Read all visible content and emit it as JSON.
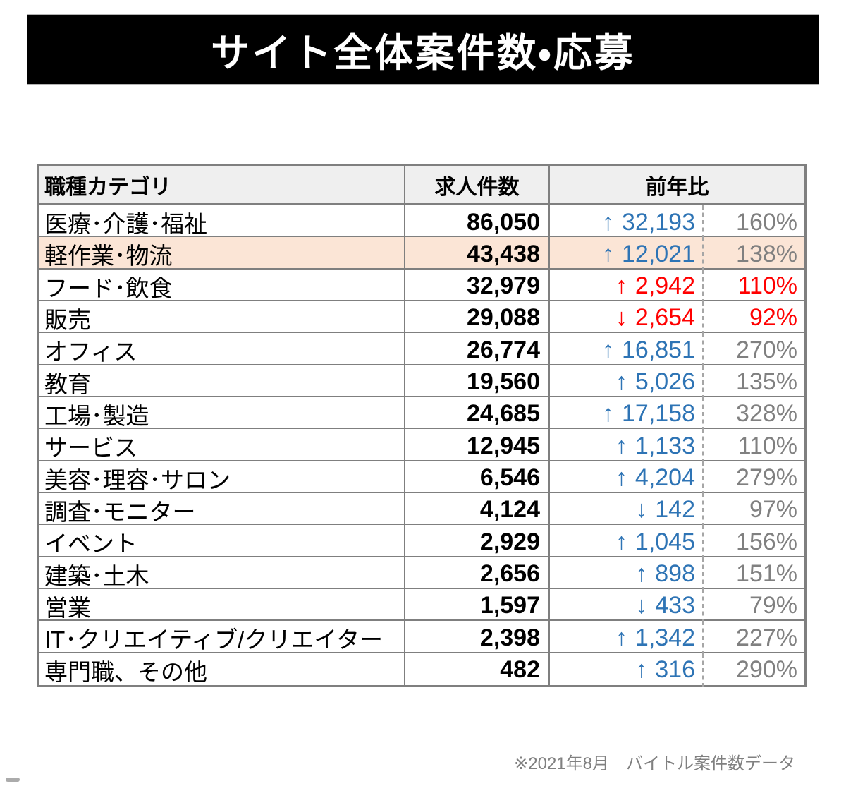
{
  "title": "サイト全体案件数・応募",
  "footer": {
    "note": "※2021年8月　バイトル案件数データ"
  },
  "colors": {
    "blue": "#2E74B5",
    "red": "#FF0000",
    "gray": "#808080",
    "highlight_bg": "#FBE5D6",
    "header_bg": "#EFEFEF",
    "border": "#7F7F7F",
    "banner_bg": "#000000",
    "banner_text": "#FFFFFF"
  },
  "table": {
    "headers": {
      "category": "職種カテゴリ",
      "count": "求人件数",
      "yoy": "前年比"
    },
    "rows": [
      {
        "category": "医療･介護･福祉",
        "count": "86,050",
        "arrow": "↑",
        "delta": "32,193",
        "percent": "160%",
        "delta_color": "blue",
        "percent_color": "gray",
        "highlight": false
      },
      {
        "category": "軽作業･物流",
        "count": "43,438",
        "arrow": "↑",
        "delta": "12,021",
        "percent": "138%",
        "delta_color": "blue",
        "percent_color": "gray",
        "highlight": true
      },
      {
        "category": "フード･飲食",
        "count": "32,979",
        "arrow": "↑",
        "delta": "2,942",
        "percent": "110%",
        "delta_color": "red",
        "percent_color": "red",
        "highlight": false
      },
      {
        "category": "販売",
        "count": "29,088",
        "arrow": "↓",
        "delta": "2,654",
        "percent": "92%",
        "delta_color": "red",
        "percent_color": "red",
        "highlight": false
      },
      {
        "category": "オフィス",
        "count": "26,774",
        "arrow": "↑",
        "delta": "16,851",
        "percent": "270%",
        "delta_color": "blue",
        "percent_color": "gray",
        "highlight": false
      },
      {
        "category": "教育",
        "count": "19,560",
        "arrow": "↑",
        "delta": "5,026",
        "percent": "135%",
        "delta_color": "blue",
        "percent_color": "gray",
        "highlight": false
      },
      {
        "category": "工場･製造",
        "count": "24,685",
        "arrow": "↑",
        "delta": "17,158",
        "percent": "328%",
        "delta_color": "blue",
        "percent_color": "gray",
        "highlight": false
      },
      {
        "category": "サービス",
        "count": "12,945",
        "arrow": "↑",
        "delta": "1,133",
        "percent": "110%",
        "delta_color": "blue",
        "percent_color": "gray",
        "highlight": false
      },
      {
        "category": "美容･理容･サロン",
        "count": "6,546",
        "arrow": "↑",
        "delta": "4,204",
        "percent": "279%",
        "delta_color": "blue",
        "percent_color": "gray",
        "highlight": false
      },
      {
        "category": "調査･モニター",
        "count": "4,124",
        "arrow": "↓",
        "delta": "142",
        "percent": "97%",
        "delta_color": "blue",
        "percent_color": "gray",
        "highlight": false
      },
      {
        "category": "イベント",
        "count": "2,929",
        "arrow": "↑",
        "delta": "1,045",
        "percent": "156%",
        "delta_color": "blue",
        "percent_color": "gray",
        "highlight": false
      },
      {
        "category": "建築･土木",
        "count": "2,656",
        "arrow": "↑",
        "delta": "898",
        "percent": "151%",
        "delta_color": "blue",
        "percent_color": "gray",
        "highlight": false
      },
      {
        "category": "営業",
        "count": "1,597",
        "arrow": "↓",
        "delta": "433",
        "percent": "79%",
        "delta_color": "blue",
        "percent_color": "gray",
        "highlight": false
      },
      {
        "category": "IT･クリエイティブ/クリエイター",
        "count": "2,398",
        "arrow": "↑",
        "delta": "1,342",
        "percent": "227%",
        "delta_color": "blue",
        "percent_color": "gray",
        "highlight": false
      },
      {
        "category": "専門職、その他",
        "count": "482",
        "arrow": "↑",
        "delta": "316",
        "percent": "290%",
        "delta_color": "blue",
        "percent_color": "gray",
        "highlight": false
      }
    ]
  },
  "chart_data": {
    "type": "table",
    "title": "サイト全体案件数・応募",
    "columns": [
      "職種カテゴリ",
      "求人件数",
      "前年比増減",
      "前年比"
    ],
    "rows": [
      [
        "医療･介護･福祉",
        86050,
        32193,
        160
      ],
      [
        "軽作業･物流",
        43438,
        12021,
        138
      ],
      [
        "フード･飲食",
        32979,
        2942,
        110
      ],
      [
        "販売",
        29088,
        -2654,
        92
      ],
      [
        "オフィス",
        26774,
        16851,
        270
      ],
      [
        "教育",
        19560,
        5026,
        135
      ],
      [
        "工場･製造",
        24685,
        17158,
        328
      ],
      [
        "サービス",
        12945,
        1133,
        110
      ],
      [
        "美容･理容･サロン",
        6546,
        4204,
        279
      ],
      [
        "調査･モニター",
        4124,
        -142,
        97
      ],
      [
        "イベント",
        2929,
        1045,
        156
      ],
      [
        "建築･土木",
        2656,
        898,
        151
      ],
      [
        "営業",
        1597,
        -433,
        79
      ],
      [
        "IT･クリエイティブ/クリエイター",
        2398,
        1342,
        227
      ],
      [
        "専門職、その他",
        482,
        316,
        290
      ]
    ],
    "percent_unit": "%",
    "highlighted_row": "軽作業･物流",
    "note": "※2021年8月　バイトル案件数データ"
  }
}
